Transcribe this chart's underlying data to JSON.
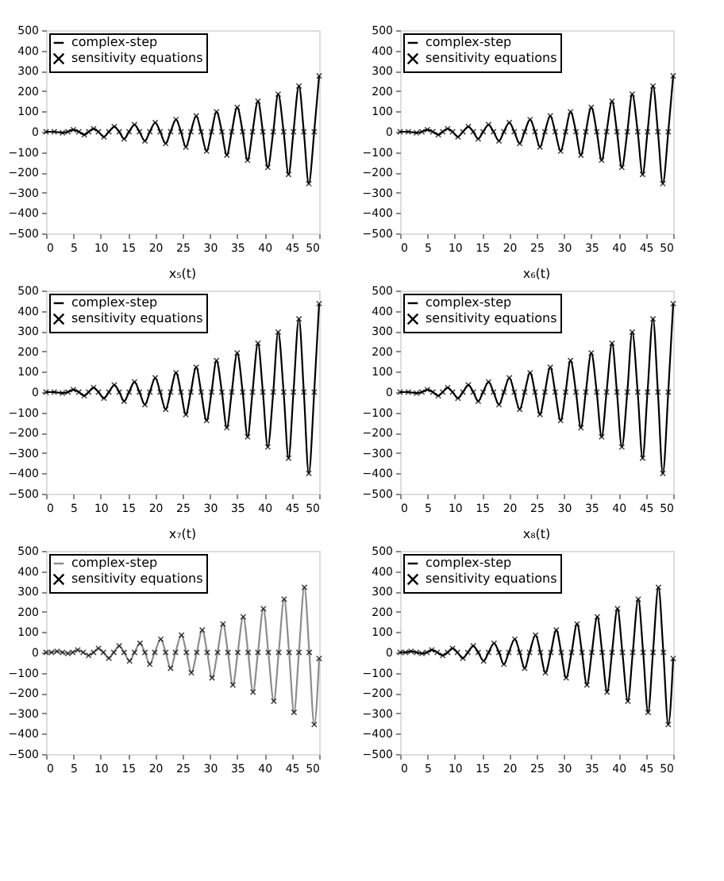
{
  "chart_data": [
    {
      "type": "line",
      "legend": "top left",
      "grid": false,
      "xlim": [
        0,
        50
      ],
      "ylim": [
        -500,
        500
      ],
      "xticks": [
        0,
        5,
        10,
        15,
        20,
        25,
        30,
        35,
        40,
        45,
        50
      ],
      "yticks": [
        -500,
        -400,
        -300,
        -200,
        -100,
        0,
        100,
        200,
        300,
        400,
        500
      ],
      "x": [
        0,
        1.5,
        3,
        4,
        5,
        6,
        7,
        7.8,
        8.7,
        9.6,
        10.6,
        11.5,
        12.5,
        13.4,
        14.3,
        15.2,
        16.2,
        17.1,
        18.1,
        19,
        20,
        20.9,
        21.9,
        22.8,
        23.8,
        24.7,
        25.6,
        26.5,
        27.5,
        28.4,
        29.4,
        30.3,
        31.2,
        32.2,
        33.1,
        34,
        35,
        36,
        36.9,
        37.8,
        38.8,
        39.7,
        40.6,
        41.6,
        42.5,
        43.5,
        44.4,
        45.3,
        46.3,
        47.2,
        48.1,
        49.1,
        50
      ],
      "series": [
        {
          "name": "complex-step",
          "type": "line",
          "line_style": "solid",
          "color": "#000000",
          "values": [
            0,
            0,
            -5,
            0,
            10,
            0,
            -15,
            0,
            15,
            0,
            -25,
            0,
            25,
            0,
            -35,
            0,
            35,
            0,
            -45,
            0,
            45,
            0,
            -58,
            0,
            60,
            0,
            -75,
            0,
            78,
            0,
            -95,
            0,
            98,
            0,
            -115,
            0,
            120,
            0,
            -140,
            0,
            150,
            0,
            -175,
            0,
            185,
            0,
            -210,
            0,
            225,
            0,
            -255,
            0,
            275
          ]
        },
        {
          "name": "sensitivity equations",
          "type": "scatter",
          "marker": "cross",
          "color": "#000000",
          "values": [
            0,
            0,
            -5,
            0,
            10,
            0,
            -15,
            0,
            15,
            0,
            -25,
            0,
            25,
            0,
            -35,
            0,
            35,
            0,
            -45,
            0,
            45,
            0,
            -58,
            0,
            60,
            0,
            -75,
            0,
            78,
            0,
            -95,
            0,
            98,
            0,
            -115,
            0,
            120,
            0,
            -140,
            0,
            150,
            0,
            -175,
            0,
            185,
            0,
            -210,
            0,
            225,
            0,
            -255,
            0,
            275
          ]
        }
      ]
    },
    {
      "type": "line",
      "legend": "top left",
      "grid": false,
      "xlim": [
        0,
        50
      ],
      "ylim": [
        -500,
        500
      ],
      "xticks": [
        0,
        5,
        10,
        15,
        20,
        25,
        30,
        35,
        40,
        45,
        50
      ],
      "yticks": [
        -500,
        -400,
        -300,
        -200,
        -100,
        0,
        100,
        200,
        300,
        400,
        500
      ],
      "x": [
        0,
        1.5,
        3,
        4,
        5,
        6,
        7,
        7.8,
        8.7,
        9.6,
        10.6,
        11.5,
        12.5,
        13.4,
        14.3,
        15.2,
        16.2,
        17.1,
        18.1,
        19,
        20,
        20.9,
        21.9,
        22.8,
        23.8,
        24.7,
        25.6,
        26.5,
        27.5,
        28.4,
        29.4,
        30.3,
        31.2,
        32.2,
        33.1,
        34,
        35,
        36,
        36.9,
        37.8,
        38.8,
        39.7,
        40.6,
        41.6,
        42.5,
        43.5,
        44.4,
        45.3,
        46.3,
        47.2,
        48.1,
        49.1,
        50
      ],
      "series": [
        {
          "name": "complex-step",
          "type": "line",
          "line_style": "solid",
          "color": "#000000",
          "values": [
            0,
            0,
            -5,
            0,
            10,
            0,
            -15,
            0,
            15,
            0,
            -25,
            0,
            25,
            0,
            -35,
            0,
            35,
            0,
            -45,
            0,
            45,
            0,
            -58,
            0,
            60,
            0,
            -75,
            0,
            78,
            0,
            -95,
            0,
            98,
            0,
            -115,
            0,
            120,
            0,
            -140,
            0,
            150,
            0,
            -175,
            0,
            185,
            0,
            -210,
            0,
            225,
            0,
            -255,
            0,
            275
          ]
        },
        {
          "name": "sensitivity equations",
          "type": "scatter",
          "marker": "cross",
          "color": "#000000",
          "values": [
            0,
            0,
            -5,
            0,
            10,
            0,
            -15,
            0,
            15,
            0,
            -25,
            0,
            25,
            0,
            -35,
            0,
            35,
            0,
            -45,
            0,
            45,
            0,
            -58,
            0,
            60,
            0,
            -75,
            0,
            78,
            0,
            -95,
            0,
            98,
            0,
            -115,
            0,
            120,
            0,
            -140,
            0,
            150,
            0,
            -175,
            0,
            185,
            0,
            -210,
            0,
            225,
            0,
            -255,
            0,
            275
          ]
        }
      ]
    },
    {
      "type": "line",
      "title": "x₅(t)",
      "legend": "top left",
      "grid": false,
      "xlim": [
        0,
        50
      ],
      "ylim": [
        -500,
        500
      ],
      "xticks": [
        0,
        5,
        10,
        15,
        20,
        25,
        30,
        35,
        40,
        45,
        50
      ],
      "yticks": [
        -500,
        -400,
        -300,
        -200,
        -100,
        0,
        100,
        200,
        300,
        400,
        500
      ],
      "x": [
        0,
        1.5,
        3,
        4,
        5,
        6,
        7,
        7.8,
        8.7,
        9.6,
        10.6,
        11.5,
        12.5,
        13.4,
        14.3,
        15.2,
        16.2,
        17.1,
        18.1,
        19,
        20,
        20.9,
        21.9,
        22.8,
        23.8,
        24.7,
        25.6,
        26.5,
        27.5,
        28.4,
        29.4,
        30.3,
        31.2,
        32.2,
        33.1,
        34,
        35,
        36,
        36.9,
        37.8,
        38.8,
        39.7,
        40.6,
        41.6,
        42.5,
        43.5,
        44.4,
        45.3,
        46.3,
        47.2,
        48.1,
        49.1,
        50
      ],
      "series": [
        {
          "name": "complex-step",
          "type": "line",
          "line_style": "solid",
          "color": "#000000",
          "values": [
            0,
            0,
            -5,
            0,
            12,
            0,
            -18,
            0,
            22,
            0,
            -30,
            0,
            35,
            0,
            -45,
            0,
            50,
            0,
            -62,
            0,
            70,
            0,
            -85,
            0,
            95,
            0,
            -110,
            0,
            122,
            0,
            -140,
            0,
            155,
            0,
            -175,
            0,
            192,
            0,
            -220,
            0,
            240,
            0,
            -270,
            0,
            295,
            0,
            -325,
            0,
            360,
            0,
            -400,
            0,
            435
          ]
        },
        {
          "name": "sensitivity equations",
          "type": "scatter",
          "marker": "cross",
          "color": "#000000",
          "values": [
            0,
            0,
            -5,
            0,
            12,
            0,
            -18,
            0,
            22,
            0,
            -30,
            0,
            35,
            0,
            -45,
            0,
            50,
            0,
            -62,
            0,
            70,
            0,
            -85,
            0,
            95,
            0,
            -110,
            0,
            122,
            0,
            -140,
            0,
            155,
            0,
            -175,
            0,
            192,
            0,
            -220,
            0,
            240,
            0,
            -270,
            0,
            295,
            0,
            -325,
            0,
            360,
            0,
            -400,
            0,
            435
          ]
        }
      ]
    },
    {
      "type": "line",
      "title": "x₆(t)",
      "legend": "top left",
      "grid": false,
      "xlim": [
        0,
        50
      ],
      "ylim": [
        -500,
        500
      ],
      "xticks": [
        0,
        5,
        10,
        15,
        20,
        25,
        30,
        35,
        40,
        45,
        50
      ],
      "yticks": [
        -500,
        -400,
        -300,
        -200,
        -100,
        0,
        100,
        200,
        300,
        400,
        500
      ],
      "x": [
        0,
        1.5,
        3,
        4,
        5,
        6,
        7,
        7.8,
        8.7,
        9.6,
        10.6,
        11.5,
        12.5,
        13.4,
        14.3,
        15.2,
        16.2,
        17.1,
        18.1,
        19,
        20,
        20.9,
        21.9,
        22.8,
        23.8,
        24.7,
        25.6,
        26.5,
        27.5,
        28.4,
        29.4,
        30.3,
        31.2,
        32.2,
        33.1,
        34,
        35,
        36,
        36.9,
        37.8,
        38.8,
        39.7,
        40.6,
        41.6,
        42.5,
        43.5,
        44.4,
        45.3,
        46.3,
        47.2,
        48.1,
        49.1,
        50
      ],
      "series": [
        {
          "name": "complex-step",
          "type": "line",
          "line_style": "solid",
          "color": "#000000",
          "values": [
            0,
            0,
            -5,
            0,
            12,
            0,
            -18,
            0,
            22,
            0,
            -30,
            0,
            35,
            0,
            -45,
            0,
            50,
            0,
            -62,
            0,
            70,
            0,
            -85,
            0,
            95,
            0,
            -110,
            0,
            122,
            0,
            -140,
            0,
            155,
            0,
            -175,
            0,
            192,
            0,
            -220,
            0,
            240,
            0,
            -270,
            0,
            295,
            0,
            -325,
            0,
            360,
            0,
            -400,
            0,
            435
          ]
        },
        {
          "name": "sensitivity equations",
          "type": "scatter",
          "marker": "cross",
          "color": "#000000",
          "values": [
            0,
            0,
            -5,
            0,
            12,
            0,
            -18,
            0,
            22,
            0,
            -30,
            0,
            35,
            0,
            -45,
            0,
            50,
            0,
            -62,
            0,
            70,
            0,
            -85,
            0,
            95,
            0,
            -110,
            0,
            122,
            0,
            -140,
            0,
            155,
            0,
            -175,
            0,
            192,
            0,
            -220,
            0,
            240,
            0,
            -270,
            0,
            295,
            0,
            -325,
            0,
            360,
            0,
            -400,
            0,
            435
          ]
        }
      ]
    },
    {
      "type": "line",
      "title": "x₇(t)",
      "legend": "top left",
      "grid": false,
      "xlim": [
        0,
        50
      ],
      "ylim": [
        -500,
        500
      ],
      "xticks": [
        0,
        5,
        10,
        15,
        20,
        25,
        30,
        35,
        40,
        45,
        50
      ],
      "yticks": [
        -500,
        -400,
        -300,
        -200,
        -100,
        0,
        100,
        200,
        300,
        400,
        500
      ],
      "x": [
        0,
        1,
        2,
        3,
        4,
        4.9,
        5.8,
        6.8,
        7.8,
        8.7,
        9.6,
        10.5,
        11.5,
        12.4,
        13.4,
        14.3,
        15.3,
        16.2,
        17.2,
        18.1,
        19,
        19.9,
        21,
        21.9,
        22.8,
        23.7,
        24.8,
        25.7,
        26.6,
        27.6,
        28.6,
        29.5,
        30.4,
        31.4,
        32.4,
        33.3,
        34.2,
        35.1,
        36.1,
        37,
        37.9,
        38.8,
        39.8,
        40.7,
        41.7,
        42.6,
        43.6,
        44.5,
        45.4,
        46.3,
        47.3,
        48.2,
        49.1,
        50
      ],
      "series": [
        {
          "name": "complex-step",
          "type": "line",
          "line_style": "solid",
          "color": "#8c8c8c",
          "values": [
            0,
            0,
            5,
            0,
            -5,
            0,
            12,
            0,
            -15,
            0,
            20,
            0,
            -28,
            0,
            32,
            0,
            -42,
            0,
            45,
            0,
            -58,
            0,
            65,
            0,
            -78,
            0,
            85,
            0,
            -100,
            0,
            110,
            0,
            -125,
            0,
            140,
            0,
            -160,
            0,
            175,
            0,
            -195,
            0,
            215,
            0,
            -240,
            0,
            262,
            0,
            -295,
            0,
            320,
            0,
            -355,
            -30
          ]
        },
        {
          "name": "sensitivity equations",
          "type": "scatter",
          "marker": "cross",
          "color": "#000000",
          "values": [
            0,
            0,
            5,
            0,
            -5,
            0,
            12,
            0,
            -15,
            0,
            20,
            0,
            -28,
            0,
            32,
            0,
            -42,
            0,
            45,
            0,
            -58,
            0,
            65,
            0,
            -78,
            0,
            85,
            0,
            -100,
            0,
            110,
            0,
            -125,
            0,
            140,
            0,
            -160,
            0,
            175,
            0,
            -195,
            0,
            215,
            0,
            -240,
            0,
            262,
            0,
            -295,
            0,
            320,
            0,
            -355,
            -30
          ]
        }
      ]
    },
    {
      "type": "line",
      "title": "x₈(t)",
      "legend": "top left",
      "grid": false,
      "xlim": [
        0,
        50
      ],
      "ylim": [
        -500,
        500
      ],
      "xticks": [
        0,
        5,
        10,
        15,
        20,
        25,
        30,
        35,
        40,
        45,
        50
      ],
      "yticks": [
        -500,
        -400,
        -300,
        -200,
        -100,
        0,
        100,
        200,
        300,
        400,
        500
      ],
      "x": [
        0,
        1,
        2,
        3,
        4,
        4.9,
        5.8,
        6.8,
        7.8,
        8.7,
        9.6,
        10.5,
        11.5,
        12.4,
        13.4,
        14.3,
        15.3,
        16.2,
        17.2,
        18.1,
        19,
        19.9,
        21,
        21.9,
        22.8,
        23.7,
        24.8,
        25.7,
        26.6,
        27.6,
        28.6,
        29.5,
        30.4,
        31.4,
        32.4,
        33.3,
        34.2,
        35.1,
        36.1,
        37,
        37.9,
        38.8,
        39.8,
        40.7,
        41.7,
        42.6,
        43.6,
        44.5,
        45.4,
        46.3,
        47.3,
        48.2,
        49.1,
        50
      ],
      "series": [
        {
          "name": "complex-step",
          "type": "line",
          "line_style": "solid",
          "color": "#000000",
          "values": [
            0,
            0,
            5,
            0,
            -5,
            0,
            12,
            0,
            -15,
            0,
            20,
            0,
            -28,
            0,
            32,
            0,
            -42,
            0,
            45,
            0,
            -58,
            0,
            65,
            0,
            -78,
            0,
            85,
            0,
            -100,
            0,
            110,
            0,
            -125,
            0,
            140,
            0,
            -160,
            0,
            175,
            0,
            -195,
            0,
            215,
            0,
            -240,
            0,
            262,
            0,
            -295,
            0,
            320,
            0,
            -355,
            -30
          ]
        },
        {
          "name": "sensitivity equations",
          "type": "scatter",
          "marker": "cross",
          "color": "#000000",
          "values": [
            0,
            0,
            5,
            0,
            -5,
            0,
            12,
            0,
            -15,
            0,
            20,
            0,
            -28,
            0,
            32,
            0,
            -42,
            0,
            45,
            0,
            -58,
            0,
            65,
            0,
            -78,
            0,
            85,
            0,
            -100,
            0,
            110,
            0,
            -125,
            0,
            140,
            0,
            -160,
            0,
            175,
            0,
            -195,
            0,
            215,
            0,
            -240,
            0,
            262,
            0,
            -295,
            0,
            320,
            0,
            -355,
            -30
          ]
        }
      ]
    }
  ]
}
